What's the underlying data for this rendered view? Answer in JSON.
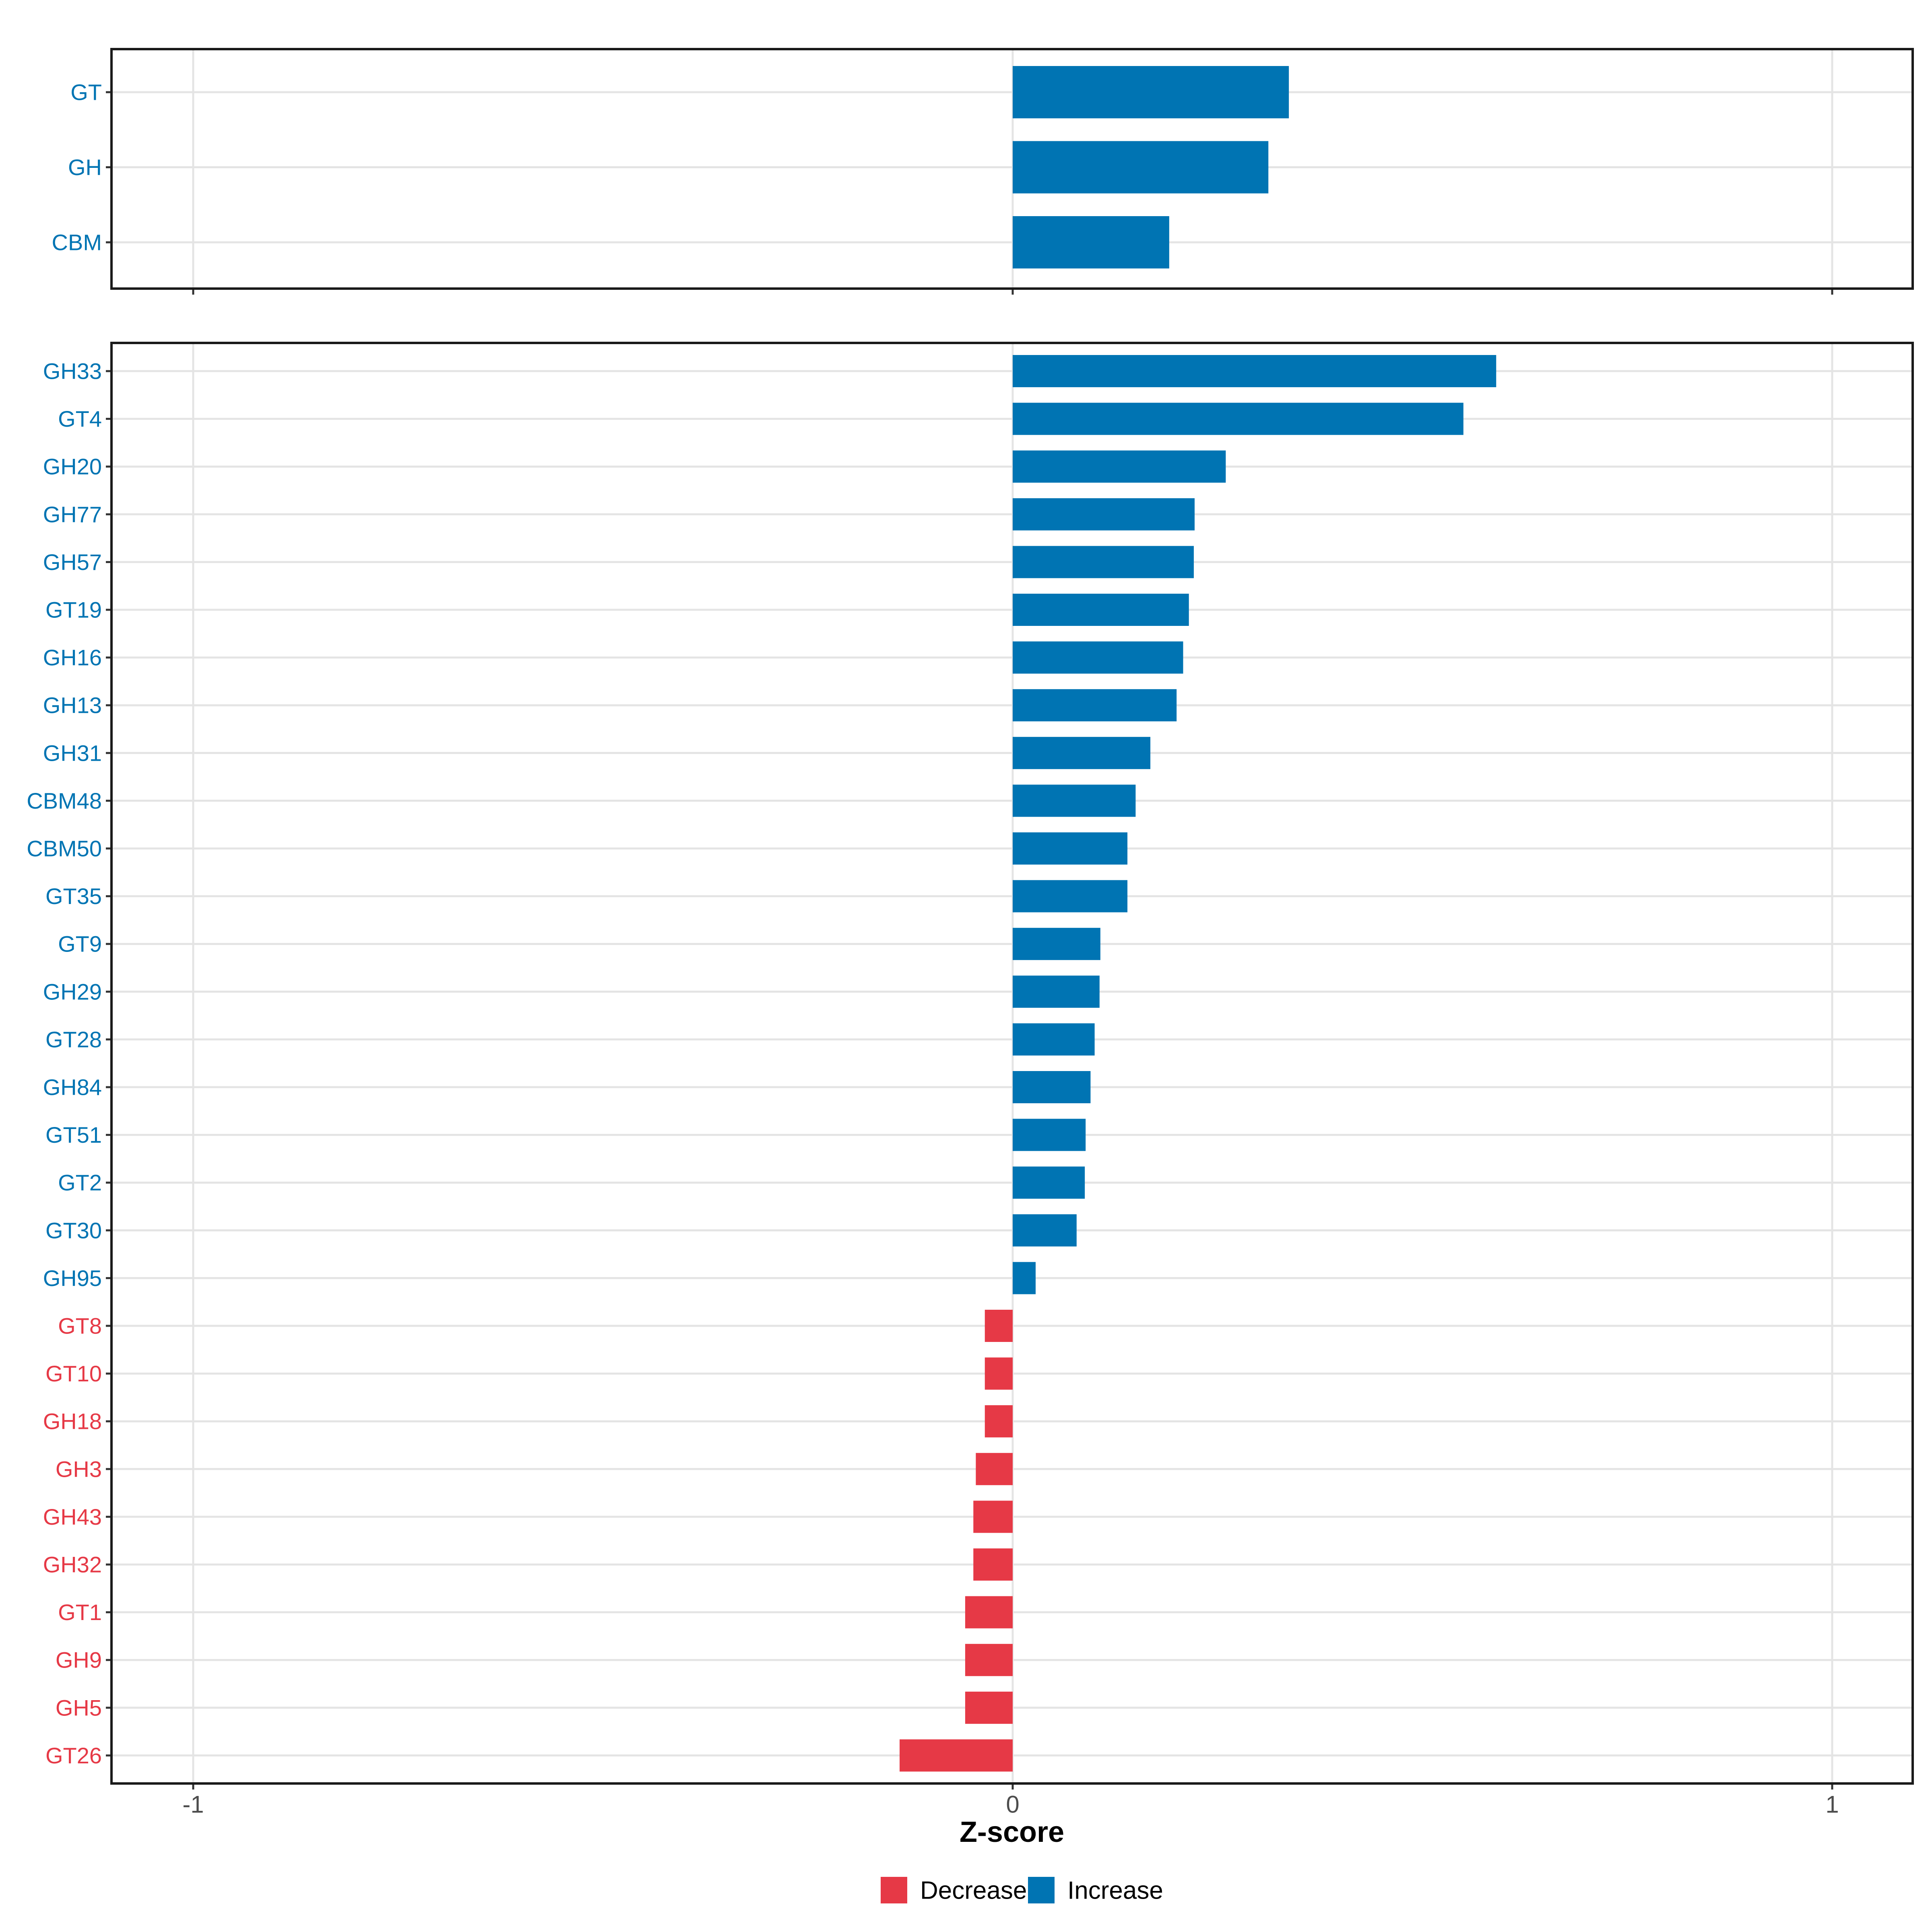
{
  "figure": {
    "background": "#FFFFFF",
    "axis": {
      "title": "Z-score",
      "ticks": [
        {
          "value": -1,
          "label": "-1"
        },
        {
          "value": 0,
          "label": "0"
        },
        {
          "value": 1,
          "label": "1"
        }
      ],
      "range": [
        -1.1,
        1.1
      ]
    },
    "legend": [
      {
        "label": "Decrease",
        "color": "#E63946",
        "key": "decrease"
      },
      {
        "label": "Increase",
        "color": "#0074B3",
        "key": "increase"
      }
    ],
    "colors": {
      "increase": "#0074B3",
      "decrease": "#E63946",
      "grid": "#E4E4E4",
      "panel_border": "#1A1A1A",
      "tick_mark": "#333333",
      "tick_label": "#4D4D4D",
      "axis_title": "#000000"
    }
  },
  "chart_data": [
    {
      "type": "bar",
      "orientation": "horizontal",
      "panel": "top",
      "title": "",
      "xlabel": "Z-score",
      "ylabel": "",
      "xlim": [
        -1.1,
        1.1
      ],
      "grid": true,
      "categories": [
        "GT",
        "GH",
        "CBM"
      ],
      "values": [
        0.337,
        0.312,
        0.191
      ],
      "directions": [
        "increase",
        "increase",
        "increase"
      ]
    },
    {
      "type": "bar",
      "orientation": "horizontal",
      "panel": "bottom",
      "title": "",
      "xlabel": "Z-score",
      "ylabel": "",
      "xlim": [
        -1.1,
        1.1
      ],
      "grid": true,
      "categories": [
        "GH33",
        "GT4",
        "GH20",
        "GH77",
        "GH57",
        "GT19",
        "GH16",
        "GH13",
        "GH31",
        "CBM48",
        "CBM50",
        "GT35",
        "GT9",
        "GH29",
        "GT28",
        "GH84",
        "GT51",
        "GT2",
        "GT30",
        "GH95",
        "GT8",
        "GT10",
        "GH18",
        "GH3",
        "GH43",
        "GH32",
        "GT1",
        "GH9",
        "GH5",
        "GT26"
      ],
      "values": [
        0.59,
        0.55,
        0.26,
        0.222,
        0.221,
        0.215,
        0.208,
        0.2,
        0.168,
        0.15,
        0.14,
        0.14,
        0.107,
        0.106,
        0.1,
        0.095,
        0.089,
        0.088,
        0.078,
        0.028,
        -0.034,
        -0.034,
        -0.034,
        -0.045,
        -0.048,
        -0.048,
        -0.058,
        -0.058,
        -0.058,
        -0.138
      ],
      "directions": [
        "increase",
        "increase",
        "increase",
        "increase",
        "increase",
        "increase",
        "increase",
        "increase",
        "increase",
        "increase",
        "increase",
        "increase",
        "increase",
        "increase",
        "increase",
        "increase",
        "increase",
        "increase",
        "increase",
        "increase",
        "decrease",
        "decrease",
        "decrease",
        "decrease",
        "decrease",
        "decrease",
        "decrease",
        "decrease",
        "decrease",
        "decrease"
      ]
    }
  ]
}
